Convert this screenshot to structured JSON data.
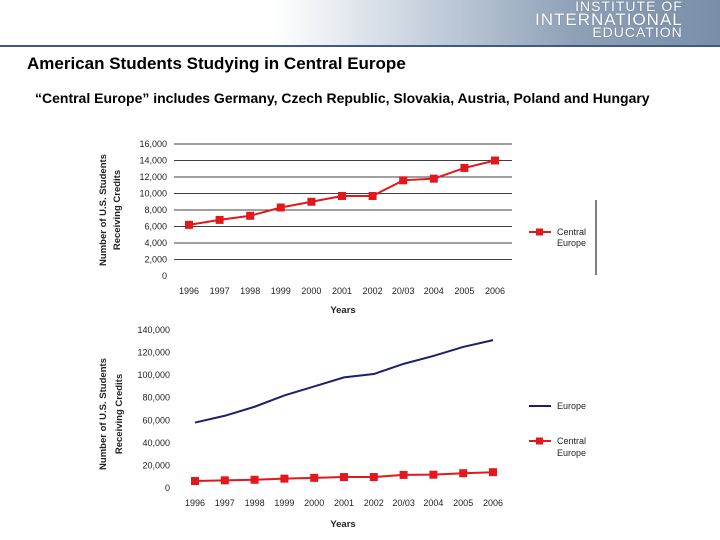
{
  "header": {
    "logo_lines": [
      "INSTITUTE OF",
      "INTERNATIONAL",
      "EDUCATION"
    ],
    "brand_color": "#3e5a85"
  },
  "page": {
    "title": "American Students Studying in Central Europe",
    "subtitle": "“Central Europe” includes Germany, Czech Republic, Slovakia, Austria, Poland and Hungary"
  },
  "chart_data": [
    {
      "type": "line",
      "categories": [
        "1996",
        "1997",
        "1998",
        "1999",
        "2000",
        "2001",
        "2002",
        "20/03",
        "2004",
        "2005",
        "2006"
      ],
      "series": [
        {
          "name": "Central Europe",
          "color": "#e3181d",
          "marker": "square",
          "values": [
            6200,
            6800,
            7300,
            8300,
            9000,
            9700,
            9700,
            11600,
            11800,
            13100,
            14000
          ]
        }
      ],
      "ylabel": "Number of U.S. Students Receiving Credits",
      "xlabel": "Years",
      "ylim": [
        0,
        16000
      ],
      "yticks": [
        0,
        2000,
        4000,
        6000,
        8000,
        10000,
        12000,
        14000,
        16000
      ],
      "ytick_labels": [
        "0",
        "2,000",
        "4,000",
        "6,000",
        "8,000",
        "10,000",
        "12,000",
        "14,000",
        "16,000"
      ],
      "grid": true,
      "legend": "right",
      "legend_labels": [
        "Central",
        "Europe"
      ]
    },
    {
      "type": "line",
      "categories": [
        "1996",
        "1997",
        "1998",
        "1999",
        "2000",
        "2001",
        "2002",
        "20/03",
        "2004",
        "2005",
        "2006"
      ],
      "series": [
        {
          "name": "Europe",
          "color": "#1f1f6b",
          "marker": "none",
          "values": [
            58000,
            64000,
            72000,
            82000,
            90000,
            98000,
            101000,
            110000,
            117000,
            125000,
            131000
          ]
        },
        {
          "name": "Central Europe",
          "color": "#e3181d",
          "marker": "square",
          "values": [
            6200,
            6800,
            7300,
            8300,
            9000,
            9700,
            9700,
            11600,
            11800,
            13100,
            14000
          ]
        }
      ],
      "ylabel": "Number of U.S. Students Receiving Credits",
      "xlabel": "Years",
      "ylim": [
        0,
        140000
      ],
      "yticks": [
        0,
        20000,
        40000,
        60000,
        80000,
        100000,
        120000,
        140000
      ],
      "ytick_labels": [
        "0",
        "20,000",
        "40,000",
        "60,000",
        "80,000",
        "100,000",
        "120,000",
        "140,000"
      ],
      "grid": false,
      "legend": "right",
      "legend_labels": [
        [
          "Europe"
        ],
        [
          "Central",
          "Europe"
        ]
      ]
    }
  ]
}
